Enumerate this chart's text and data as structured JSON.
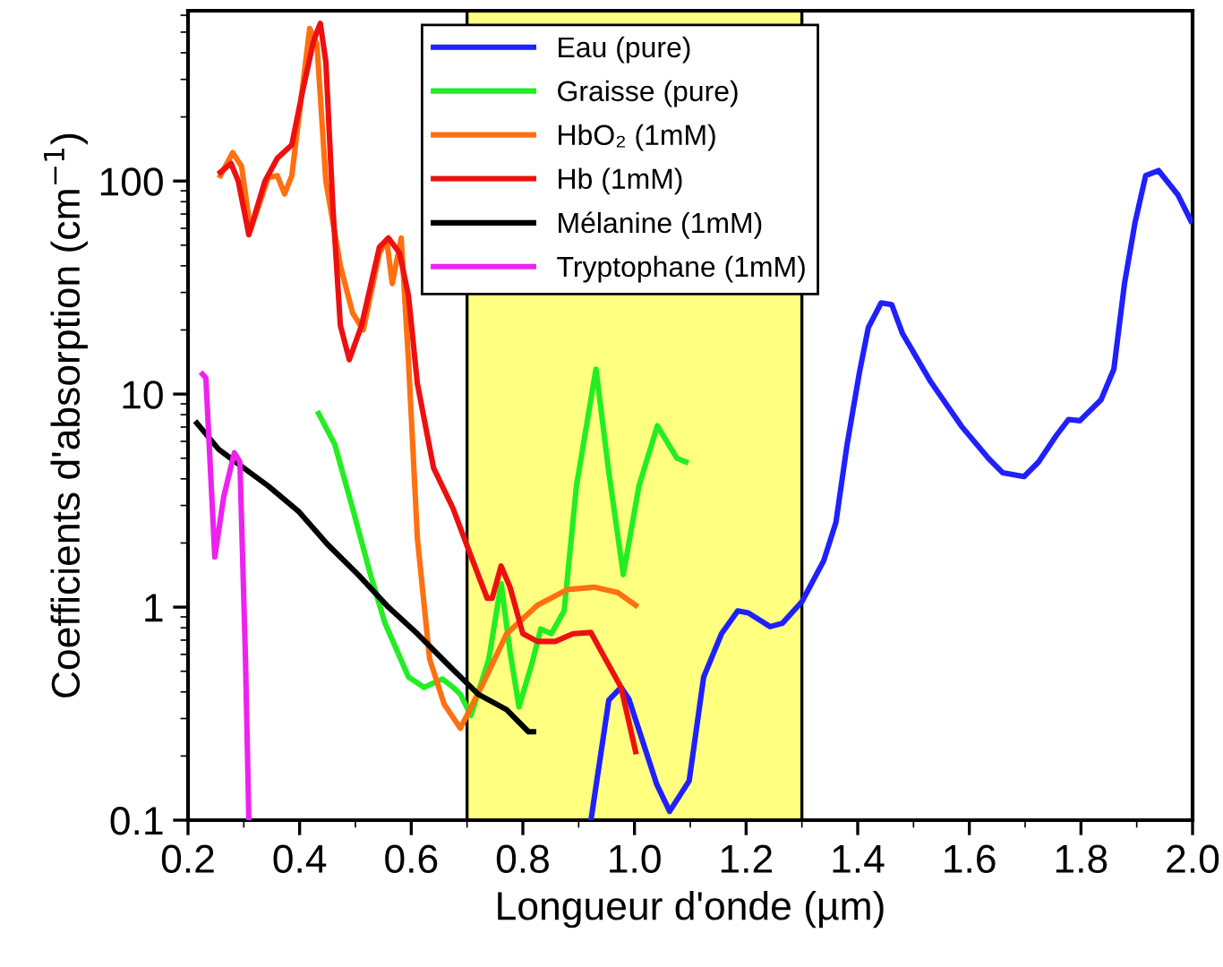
{
  "chart_data": {
    "type": "line",
    "xlabel": "Longueur d'onde (µm)",
    "ylabel": "Coefficients d'absorption (cm$^{−1}$)",
    "log": "y",
    "xlim": [
      0.2,
      2.0
    ],
    "ylim": [
      0.1,
      630
    ],
    "xticks": [
      0.2,
      0.4,
      0.6,
      0.8,
      {
        "value": 1,
        "label": "1.0"
      },
      1.2,
      1.4,
      1.6,
      1.8,
      {
        "value": 2,
        "label": "2.0"
      }
    ],
    "yticks": [
      {
        "value": 0.1,
        "label": "0.1"
      },
      {
        "value": 1,
        "label": "1"
      },
      {
        "value": 10,
        "label": "10"
      },
      {
        "value": 100,
        "label": "100"
      }
    ],
    "grid": false,
    "legend": "top",
    "line_style": "solid",
    "marker": "none",
    "bands": [
      {
        "axis": "x",
        "from": 0.7,
        "to": 1.3,
        "color": "#ffff80"
      }
    ],
    "series": [
      {
        "name": "Eau (pure)",
        "color": "#2020ff",
        "x": [
          0.922,
          0.954,
          0.976,
          0.99,
          1.04,
          1.063,
          1.098,
          1.124,
          1.156,
          1.185,
          1.204,
          1.243,
          1.265,
          1.3,
          1.339,
          1.361,
          1.381,
          1.403,
          1.419,
          1.442,
          1.461,
          1.48,
          1.531,
          1.586,
          1.634,
          1.66,
          1.698,
          1.724,
          1.756,
          1.778,
          1.798,
          1.836,
          1.859,
          1.878,
          1.897,
          1.916,
          1.939,
          1.974,
          1.997
        ],
        "values": [
          0.1,
          0.366,
          0.42,
          0.37,
          0.147,
          0.11,
          0.153,
          0.47,
          0.75,
          0.96,
          0.94,
          0.81,
          0.84,
          1.06,
          1.65,
          2.5,
          5.8,
          12.6,
          20.5,
          26.8,
          26.3,
          19.3,
          11.4,
          7.06,
          5.0,
          4.27,
          4.1,
          4.8,
          6.4,
          7.6,
          7.5,
          9.4,
          13.1,
          33,
          64,
          106,
          112,
          86,
          65
        ]
      },
      {
        "name": "Graisse (pure)",
        "color": "#22ee22",
        "x": [
          0.434,
          0.463,
          0.495,
          0.527,
          0.553,
          0.595,
          0.623,
          0.656,
          0.675,
          0.688,
          0.707,
          0.739,
          0.761,
          0.777,
          0.793,
          0.816,
          0.832,
          0.851,
          0.874,
          0.896,
          0.931,
          0.954,
          0.98,
          1.008,
          1.041,
          1.076,
          1.092
        ],
        "values": [
          8.1,
          5.8,
          2.9,
          1.42,
          0.84,
          0.47,
          0.42,
          0.46,
          0.42,
          0.39,
          0.31,
          0.57,
          1.29,
          0.62,
          0.34,
          0.54,
          0.79,
          0.75,
          0.96,
          3.7,
          13.1,
          4.3,
          1.42,
          3.7,
          7.1,
          5.0,
          4.8
        ]
      },
      {
        "name": "HbO₂ (1mM)",
        "color": "#ff7010",
        "x": [
          0.258,
          0.28,
          0.296,
          0.312,
          0.344,
          0.36,
          0.373,
          0.386,
          0.418,
          0.431,
          0.447,
          0.473,
          0.495,
          0.514,
          0.543,
          0.556,
          0.566,
          0.582,
          0.595,
          0.611,
          0.633,
          0.659,
          0.688,
          0.729,
          0.771,
          0.826,
          0.88,
          0.928,
          0.97,
          1.002
        ],
        "values": [
          106,
          136,
          117,
          59,
          104,
          106,
          87,
          106,
          520,
          440,
          100,
          40,
          24,
          20,
          46,
          53,
          33,
          54,
          14.4,
          2.1,
          0.57,
          0.35,
          0.27,
          0.44,
          0.75,
          1.02,
          1.21,
          1.24,
          1.17,
          1.02
        ]
      },
      {
        "name": "Hb (1mM)",
        "color": "#ee1010",
        "x": [
          0.258,
          0.277,
          0.29,
          0.309,
          0.338,
          0.36,
          0.386,
          0.405,
          0.425,
          0.437,
          0.447,
          0.46,
          0.473,
          0.489,
          0.511,
          0.543,
          0.559,
          0.579,
          0.595,
          0.611,
          0.64,
          0.675,
          0.704,
          0.736,
          0.745,
          0.761,
          0.777,
          0.8,
          0.826,
          0.858,
          0.89,
          0.922,
          0.948,
          0.976,
          1.002
        ],
        "values": [
          110,
          121,
          100,
          56,
          100,
          128,
          148,
          262,
          455,
          550,
          363,
          72,
          21,
          14.5,
          21,
          49,
          54,
          46,
          29,
          11.2,
          4.5,
          2.9,
          1.82,
          1.1,
          1.1,
          1.56,
          1.24,
          0.75,
          0.69,
          0.69,
          0.75,
          0.76,
          0.57,
          0.42,
          0.21
        ]
      },
      {
        "name": "Mélanine (1mM)",
        "color": "#000000",
        "x": [
          0.216,
          0.255,
          0.29,
          0.344,
          0.399,
          0.45,
          0.505,
          0.559,
          0.611,
          0.665,
          0.72,
          0.771,
          0.81,
          0.819
        ],
        "values": [
          7.3,
          5.5,
          4.7,
          3.7,
          2.8,
          1.97,
          1.42,
          1.0,
          0.75,
          0.54,
          0.39,
          0.33,
          0.26,
          0.26
        ]
      },
      {
        "name": "Tryptophane (1mM)",
        "color": "#ee22ee",
        "x": [
          0.226,
          0.232,
          0.248,
          0.264,
          0.283,
          0.293,
          0.303,
          0.309
        ],
        "values": [
          12.4,
          11.9,
          1.72,
          3.3,
          5.3,
          4.8,
          0.57,
          0.1
        ]
      }
    ]
  }
}
